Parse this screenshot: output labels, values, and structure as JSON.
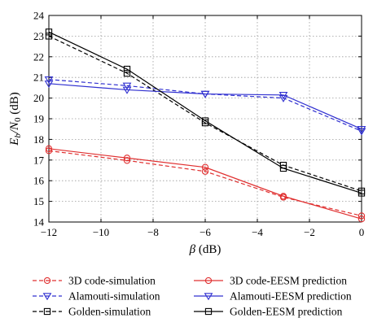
{
  "chart_data": {
    "type": "line",
    "xlabel": "β (dB)",
    "ylabel": "E_b/N_0 (dB)",
    "ylabel_parts": {
      "main": "E",
      "sub1": "b",
      "mid": "/N",
      "sub2": "0",
      "unit": " (dB)"
    },
    "xlabel_parts": {
      "symbol": "β",
      "unit": " (dB)"
    },
    "xlim": [
      -12,
      0
    ],
    "ylim": [
      14,
      24
    ],
    "x_ticks": [
      -12,
      -10,
      -8,
      -6,
      -4,
      -2,
      0
    ],
    "x_tick_labels": [
      "−12",
      "−10",
      "−8",
      "−6",
      "−4",
      "−2",
      "0"
    ],
    "y_ticks": [
      14,
      15,
      16,
      17,
      18,
      19,
      20,
      21,
      22,
      23,
      24
    ],
    "y_tick_labels": [
      "14",
      "15",
      "16",
      "17",
      "18",
      "19",
      "20",
      "21",
      "22",
      "23",
      "24"
    ],
    "grid": true,
    "legend_position": "below",
    "series": [
      {
        "name": "3D code-simulation",
        "color": "#e03030",
        "dash": "dashed",
        "marker": "circle",
        "x": [
          -12,
          -9,
          -6,
          -3,
          0
        ],
        "y": [
          17.45,
          16.98,
          16.45,
          15.2,
          14.3
        ]
      },
      {
        "name": "Alamouti-simulation",
        "color": "#3030d0",
        "dash": "dashed",
        "marker": "triangle-down",
        "x": [
          -12,
          -9,
          -6,
          -3,
          0
        ],
        "y": [
          20.9,
          20.6,
          20.2,
          20.0,
          18.4
        ]
      },
      {
        "name": "Golden-simulation",
        "color": "#000000",
        "dash": "dashed",
        "marker": "square",
        "x": [
          -12,
          -9,
          -6,
          -3,
          0
        ],
        "y": [
          23.0,
          21.2,
          18.8,
          16.75,
          15.5
        ]
      },
      {
        "name": "3D code-EESM prediction",
        "color": "#e03030",
        "dash": "solid",
        "marker": "circle",
        "x": [
          -12,
          -9,
          -6,
          -3,
          0
        ],
        "y": [
          17.55,
          17.1,
          16.65,
          15.25,
          14.15
        ]
      },
      {
        "name": "Alamouti-EESM prediction",
        "color": "#3030d0",
        "dash": "solid",
        "marker": "triangle-down",
        "x": [
          -12,
          -9,
          -6,
          -3,
          0
        ],
        "y": [
          20.7,
          20.4,
          20.2,
          20.15,
          18.5
        ]
      },
      {
        "name": "Golden-EESM prediction",
        "color": "#000000",
        "dash": "solid",
        "marker": "square",
        "x": [
          -12,
          -9,
          -6,
          -3,
          0
        ],
        "y": [
          23.2,
          21.4,
          18.9,
          16.6,
          15.4
        ]
      }
    ]
  }
}
